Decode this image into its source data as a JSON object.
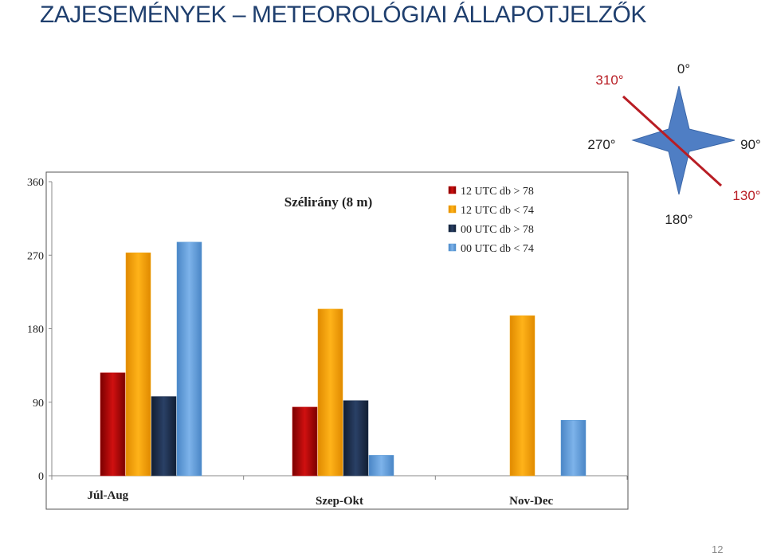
{
  "slide": {
    "title": "ZAJESEMÉNYEK – METEOROLÓGIAI ÁLLAPOTJELZŐK",
    "page_number": "12"
  },
  "compass": {
    "labels": {
      "north": "0°",
      "east": "90°",
      "south": "180°",
      "west": "270°"
    },
    "highlight_labels": [
      "310°",
      "130°"
    ],
    "rose_color": "#4f7ec4",
    "line_color": "#b81d24"
  },
  "chart_data": {
    "type": "bar",
    "title": "Szélirány (8 m)",
    "categories": [
      "Júl-Aug",
      "Szep-Okt",
      "Nov-Dec"
    ],
    "series": [
      {
        "name": "12 UTC db > 78",
        "color": "#c00000",
        "values": [
          126,
          84,
          null
        ]
      },
      {
        "name": "12 UTC db < 74",
        "color": "#f4a100",
        "values": [
          273,
          204,
          196
        ]
      },
      {
        "name": "00 UTC db > 78",
        "color": "#1f3251",
        "values": [
          97,
          92,
          null
        ]
      },
      {
        "name": "00 UTC db < 74",
        "color": "#5b9bd5",
        "values": [
          286,
          25,
          68
        ]
      }
    ],
    "yticks": [
      "0",
      "90",
      "180",
      "270",
      "360"
    ],
    "ylim": [
      0,
      360
    ],
    "grid": false,
    "legend_position": "top-center"
  }
}
